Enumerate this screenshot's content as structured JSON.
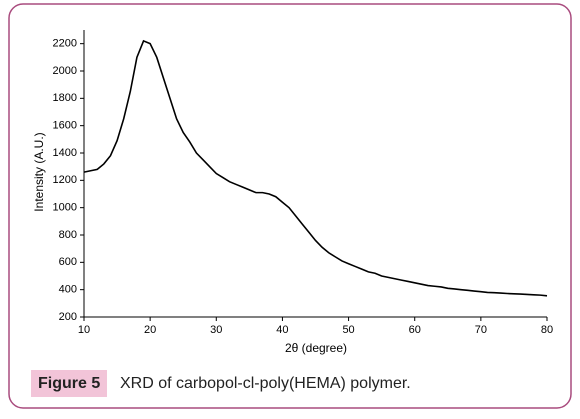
{
  "chart_data": {
    "type": "line",
    "x_label": "2θ (degree)",
    "y_label": "Intensity (A.U.)",
    "x": [
      10,
      11,
      12,
      13,
      14,
      15,
      16,
      17,
      18,
      19,
      20,
      21,
      22,
      23,
      24,
      25,
      26,
      27,
      28,
      29,
      30,
      31,
      32,
      33,
      34,
      35,
      36,
      37,
      38,
      39,
      40,
      41,
      42,
      43,
      44,
      45,
      46,
      47,
      48,
      49,
      50,
      51,
      52,
      53,
      54,
      55,
      56,
      57,
      58,
      59,
      60,
      61,
      62,
      63,
      64,
      65,
      66,
      67,
      68,
      69,
      70,
      71,
      72,
      73,
      74,
      75,
      76,
      77,
      78,
      79,
      80
    ],
    "values": [
      1260,
      1270,
      1280,
      1320,
      1380,
      1490,
      1650,
      1850,
      2100,
      2220,
      2200,
      2100,
      1950,
      1800,
      1650,
      1550,
      1480,
      1400,
      1350,
      1300,
      1250,
      1220,
      1190,
      1170,
      1150,
      1130,
      1110,
      1110,
      1100,
      1080,
      1040,
      1000,
      940,
      880,
      820,
      760,
      710,
      670,
      640,
      610,
      590,
      570,
      550,
      530,
      520,
      500,
      490,
      480,
      470,
      460,
      450,
      440,
      430,
      425,
      420,
      410,
      405,
      400,
      395,
      390,
      385,
      380,
      378,
      375,
      372,
      370,
      368,
      365,
      362,
      360,
      355
    ],
    "color": "#000000",
    "xlim": [
      10,
      80
    ],
    "xticks": [
      10,
      20,
      30,
      40,
      50,
      60,
      70,
      80
    ],
    "ylim": [
      200,
      2300
    ],
    "yticks": [
      200,
      400,
      600,
      800,
      1000,
      1200,
      1400,
      1600,
      1800,
      2000,
      2200
    ]
  },
  "figure": {
    "label": "Figure 5",
    "caption": "XRD of carbopol-cl-poly(HEMA) polymer."
  }
}
